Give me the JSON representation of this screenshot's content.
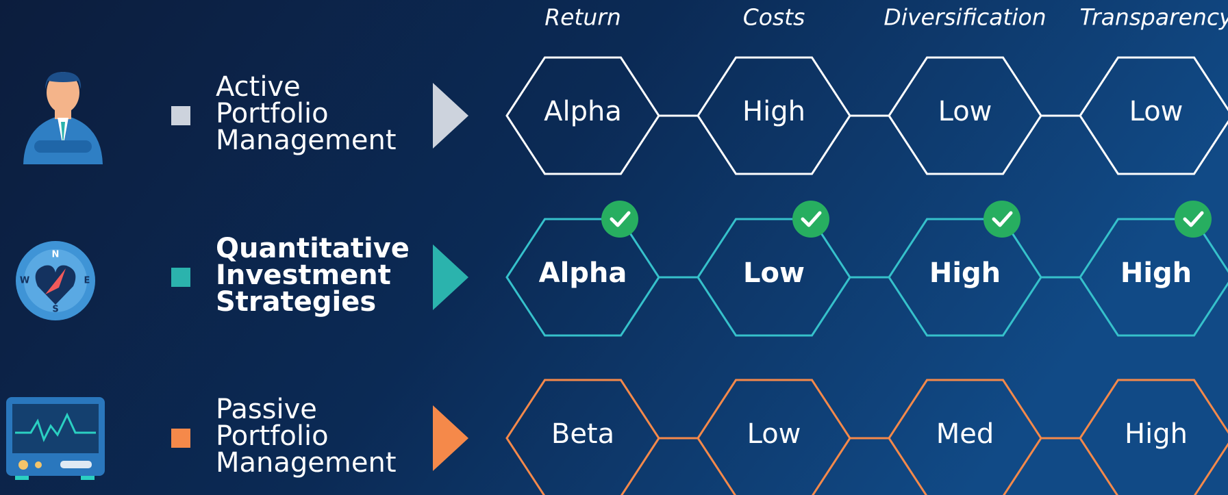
{
  "columns": [
    "Return",
    "Costs",
    "Diversification",
    "Transparency"
  ],
  "rows": [
    {
      "label": [
        "Active",
        "Portfolio",
        "Management"
      ],
      "cells": [
        "Alpha",
        "High",
        "Low",
        "Low"
      ]
    },
    {
      "label": [
        "Quantitative",
        "Investment",
        "Strategies"
      ],
      "cells": [
        "Alpha",
        "Low",
        "High",
        "High"
      ]
    },
    {
      "label": [
        "Passive",
        "Portfolio",
        "Management"
      ],
      "cells": [
        "Beta",
        "Low",
        "Med",
        "High"
      ]
    }
  ]
}
